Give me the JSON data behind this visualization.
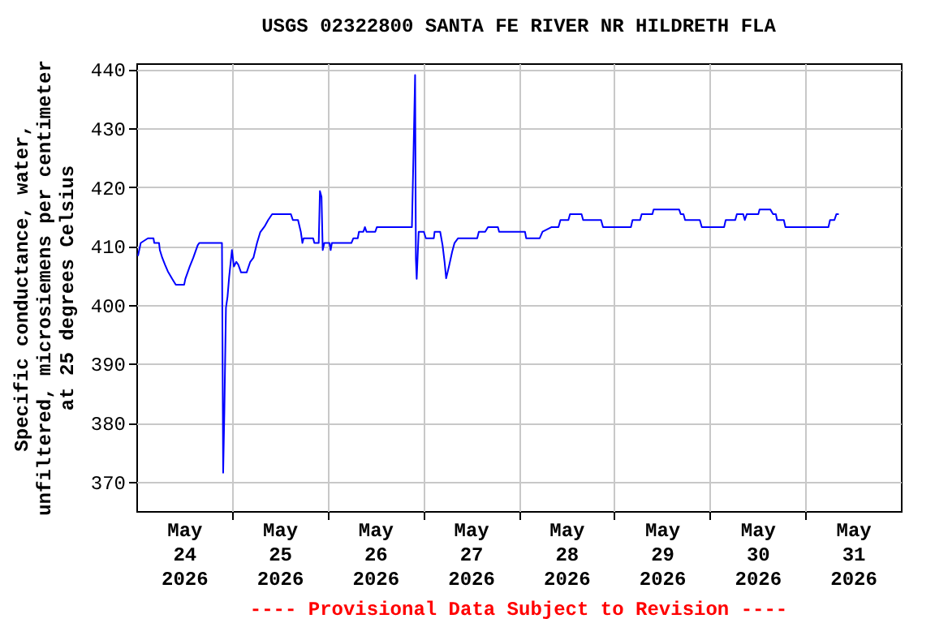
{
  "chart_data": {
    "type": "line",
    "title": "USGS 02322800 SANTA FE RIVER NR HILDRETH FLA",
    "ylabel": "Specific conductance, water, unfiltered, microsiemens per centimeter at 25 degrees Celsius",
    "annotations": [
      "---- Provisional Data Subject to Revision ----"
    ],
    "xlim": [
      "2026-05-24",
      "2026-06-01"
    ],
    "xticks": [
      {
        "value": "2026-05-24T12:00",
        "label": "May 24 2026"
      },
      {
        "value": "2026-05-25",
        "label": null
      },
      {
        "value": "2026-05-25T12:00",
        "label": "May 25 2026"
      },
      {
        "value": "2026-05-26",
        "label": null
      },
      {
        "value": "2026-05-26T12:00",
        "label": "May 26 2026"
      },
      {
        "value": "2026-05-27",
        "label": null
      },
      {
        "value": "2026-05-27T12:00",
        "label": "May 27 2026"
      },
      {
        "value": "2026-05-28",
        "label": null
      },
      {
        "value": "2026-05-28T12:00",
        "label": "May 28 2026"
      },
      {
        "value": "2026-05-29",
        "label": null
      },
      {
        "value": "2026-05-29T12:00",
        "label": "May 29 2026"
      },
      {
        "value": "2026-05-30",
        "label": null
      },
      {
        "value": "2026-05-30T12:00",
        "label": "May 30 2026"
      },
      {
        "value": "2026-05-31",
        "label": null
      },
      {
        "value": "2026-05-31T12:00",
        "label": "May 31 2026"
      }
    ],
    "ylim": [
      365,
      441
    ],
    "yticks": [
      370,
      380,
      390,
      400,
      410,
      420,
      430,
      440
    ],
    "grid": true,
    "x": [
      "2026-05-24T00:24",
      "2026-05-24T01:06",
      "2026-05-24T02:54",
      "2026-05-24T04:18",
      "2026-05-24T04:30",
      "2026-05-24T05:42",
      "2026-05-24T05:54",
      "2026-05-24T06:30",
      "2026-05-24T07:12",
      "2026-05-24T07:54",
      "2026-05-24T09:00",
      "2026-05-24T09:54",
      "2026-05-24T12:00",
      "2026-05-24T12:18",
      "2026-05-24T13:24",
      "2026-05-24T14:18",
      "2026-05-24T15:24",
      "2026-05-24T15:48",
      "2026-05-24T21:30",
      "2026-05-24T21:48",
      "2026-05-24T22:06",
      "2026-05-24T22:30",
      "2026-05-24T22:54",
      "2026-05-24T23:18",
      "2026-05-25T00:00",
      "2026-05-25T00:30",
      "2026-05-25T01:06",
      "2026-05-25T01:36",
      "2026-05-25T02:18",
      "2026-05-25T03:42",
      "2026-05-25T04:36",
      "2026-05-25T05:24",
      "2026-05-25T06:18",
      "2026-05-25T07:06",
      "2026-05-25T08:12",
      "2026-05-25T09:06",
      "2026-05-25T10:06",
      "2026-05-25T14:48",
      "2026-05-25T15:18",
      "2026-05-25T16:36",
      "2026-05-25T17:18",
      "2026-05-25T17:42",
      "2026-05-25T18:00",
      "2026-05-25T20:24",
      "2026-05-25T20:42",
      "2026-05-25T21:48",
      "2026-05-25T22:06",
      "2026-05-25T22:30",
      "2026-05-25T22:48",
      "2026-05-25T23:12",
      "2026-05-26T00:30",
      "2026-05-26T00:48",
      "2026-05-26T01:06",
      "2026-05-26T06:00",
      "2026-05-26T06:30",
      "2026-05-26T07:36",
      "2026-05-26T07:54",
      "2026-05-26T09:00",
      "2026-05-26T09:24",
      "2026-05-26T09:48",
      "2026-05-26T12:00",
      "2026-05-26T12:24",
      "2026-05-26T21:12",
      "2026-05-26T21:36",
      "2026-05-26T22:00",
      "2026-05-26T22:12",
      "2026-05-26T22:24",
      "2026-05-26T22:54",
      "2026-05-27T00:12",
      "2026-05-27T00:42",
      "2026-05-27T02:42",
      "2026-05-27T02:54",
      "2026-05-27T04:18",
      "2026-05-27T04:54",
      "2026-05-27T05:24",
      "2026-05-27T05:48",
      "2026-05-27T06:30",
      "2026-05-27T07:18",
      "2026-05-27T07:54",
      "2026-05-27T08:48",
      "2026-05-27T13:36",
      "2026-05-27T14:00",
      "2026-05-27T15:36",
      "2026-05-27T16:18",
      "2026-05-27T18:48",
      "2026-05-27T19:06",
      "2026-05-28T01:36",
      "2026-05-28T01:54",
      "2026-05-28T05:18",
      "2026-05-28T06:00",
      "2026-05-28T08:18",
      "2026-05-28T10:00",
      "2026-05-28T10:30",
      "2026-05-28T12:30",
      "2026-05-28T12:54",
      "2026-05-28T15:48",
      "2026-05-28T16:12",
      "2026-05-28T20:42",
      "2026-05-28T21:12",
      "2026-05-29T04:12",
      "2026-05-29T04:36",
      "2026-05-29T06:30",
      "2026-05-29T06:54",
      "2026-05-29T09:36",
      "2026-05-29T09:54",
      "2026-05-29T16:18",
      "2026-05-29T16:42",
      "2026-05-29T17:24",
      "2026-05-29T17:48",
      "2026-05-29T21:30",
      "2026-05-29T22:00",
      "2026-05-30T03:36",
      "2026-05-30T04:00",
      "2026-05-30T06:24",
      "2026-05-30T06:48",
      "2026-05-30T08:24",
      "2026-05-30T08:48",
      "2026-05-30T09:18",
      "2026-05-30T12:12",
      "2026-05-30T12:30",
      "2026-05-30T15:12",
      "2026-05-30T15:54",
      "2026-05-30T16:36",
      "2026-05-30T16:54",
      "2026-05-30T18:36",
      "2026-05-30T19:00",
      "2026-05-31T05:48",
      "2026-05-31T06:12",
      "2026-05-31T07:18",
      "2026-05-31T07:48",
      "2026-05-31T08:24"
    ],
    "series": [
      {
        "color": "#0000ff",
        "values": [
          408.3,
          410.5,
          411.3,
          411.3,
          410.5,
          410.5,
          409.3,
          408,
          406.8,
          405.7,
          404.4,
          403.4,
          403.4,
          404.4,
          406.5,
          408,
          410.1,
          410.5,
          410.5,
          371.5,
          381.8,
          399.5,
          401.4,
          404.7,
          409.3,
          406.5,
          407.3,
          406.8,
          405.5,
          405.5,
          407.3,
          408,
          410.5,
          412.3,
          413.3,
          414.4,
          415.4,
          415.4,
          414.4,
          414.4,
          412.4,
          410.5,
          411.3,
          411.3,
          410.5,
          410.5,
          419.3,
          418.3,
          409.3,
          410.5,
          410.5,
          409.3,
          410.5,
          410.5,
          411.3,
          411.3,
          412.4,
          412.4,
          413.2,
          412.4,
          412.4,
          413.2,
          413.2,
          425.7,
          439,
          407.8,
          404.4,
          412.4,
          412.4,
          411.3,
          411.3,
          412.4,
          412.4,
          410.1,
          407.3,
          404.5,
          406.5,
          409,
          410.5,
          411.3,
          411.3,
          412.4,
          412.4,
          413.2,
          413.2,
          412.4,
          412.4,
          411.3,
          411.3,
          412.4,
          413.2,
          413.2,
          414.4,
          414.4,
          415.4,
          415.4,
          414.4,
          414.4,
          413.2,
          413.2,
          414.4,
          414.4,
          415.4,
          415.4,
          416.2,
          416.2,
          415.4,
          415.4,
          414.4,
          414.4,
          413.2,
          413.2,
          414.4,
          414.4,
          415.4,
          415.4,
          414.4,
          415.4,
          415.4,
          416.2,
          416.2,
          415.4,
          415.4,
          414.4,
          414.4,
          413.2,
          413.2,
          414.4,
          414.4,
          415.4,
          415.4
        ]
      }
    ]
  }
}
